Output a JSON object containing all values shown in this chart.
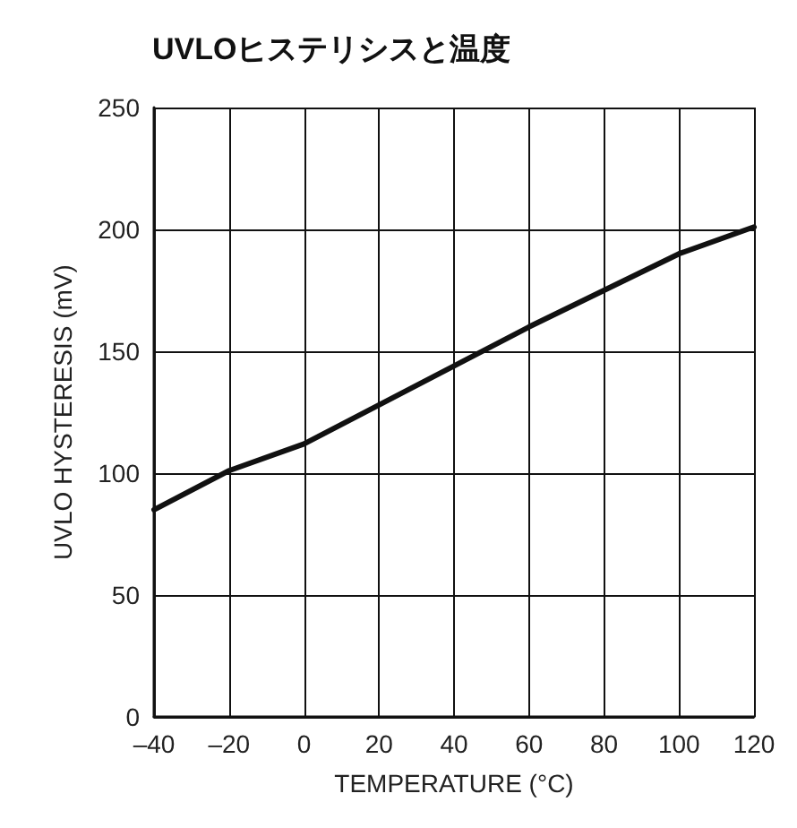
{
  "chart_data": {
    "type": "line",
    "title": "UVLOヒステリシスと温度",
    "xlabel": "TEMPERATURE (°C)",
    "ylabel": "UVLO HYSTERESIS (mV)",
    "x": [
      -40,
      -20,
      0,
      20,
      40,
      60,
      80,
      100,
      120
    ],
    "series": [
      {
        "color": "#111111",
        "values": [
          85,
          101,
          112,
          128,
          144,
          160,
          175,
          190,
          201
        ]
      }
    ],
    "xlim": [
      -40,
      120
    ],
    "xticks": [
      {
        "value": -40,
        "label": "–40"
      },
      {
        "value": -20,
        "label": "–20"
      },
      0,
      20,
      40,
      60,
      80,
      100,
      120
    ],
    "ylim": [
      0,
      250
    ],
    "yticks": [
      0,
      50,
      100,
      150,
      200,
      250
    ],
    "grid": true,
    "marker": "none",
    "line_style": "solid"
  }
}
